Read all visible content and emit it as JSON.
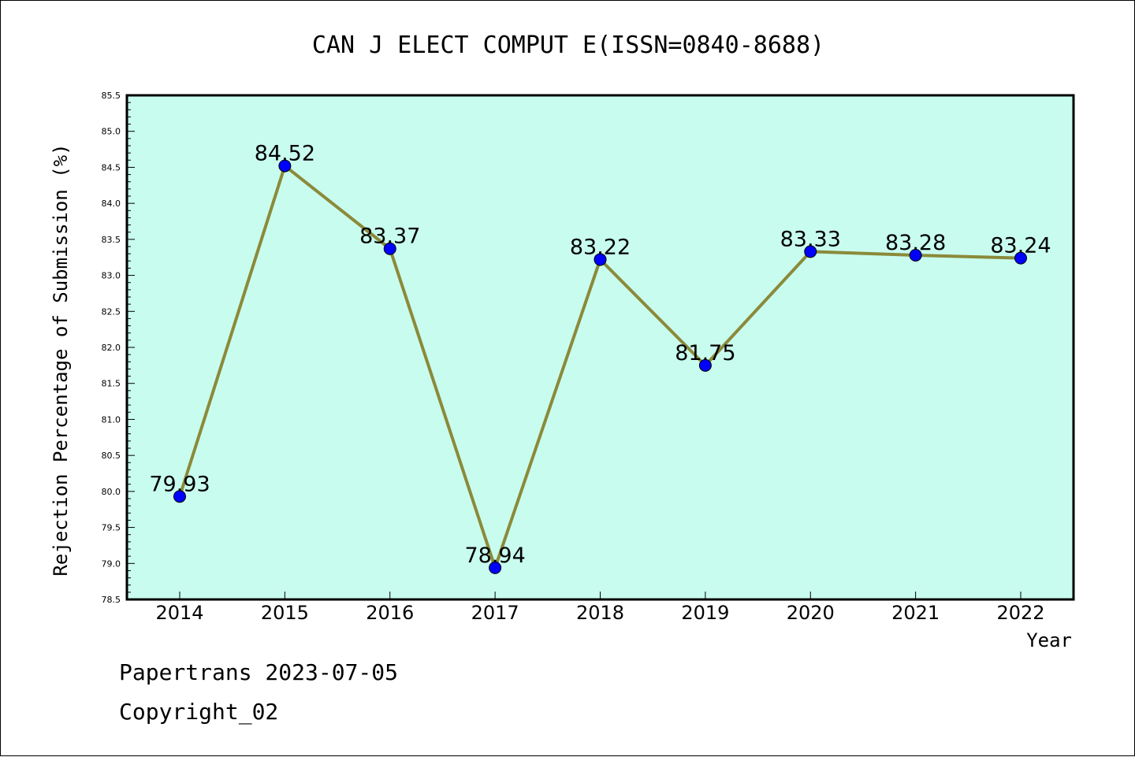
{
  "chart_data": {
    "type": "line",
    "title": "CAN J ELECT COMPUT E(ISSN=0840-8688)",
    "xlabel": "Year",
    "ylabel": "Rejection Percentage of Submission (%)",
    "categories": [
      "2014",
      "2015",
      "2016",
      "2017",
      "2018",
      "2019",
      "2020",
      "2021",
      "2022"
    ],
    "values": [
      79.93,
      84.52,
      83.37,
      78.94,
      83.22,
      81.75,
      83.33,
      83.28,
      83.24
    ],
    "data_labels": [
      "79.93",
      "84.52",
      "83.37",
      "78.94",
      "83.22",
      "81.75",
      "83.33",
      "83.28",
      "83.24"
    ],
    "ylim": [
      78.5,
      85.5
    ],
    "yticks": [
      "78.5",
      "79.0",
      "79.5",
      "80.0",
      "80.5",
      "81.0",
      "81.5",
      "82.0",
      "82.5",
      "83.0",
      "83.5",
      "84.0",
      "84.5",
      "85.0",
      "85.5"
    ],
    "grid": false,
    "legend": "none",
    "colors": {
      "plot_background": "#c8fcee",
      "line": "#8b8a3a",
      "marker": "#0000ff"
    }
  },
  "footer": {
    "line1": "Papertrans 2023-07-05",
    "line2": "Copyright_02"
  }
}
